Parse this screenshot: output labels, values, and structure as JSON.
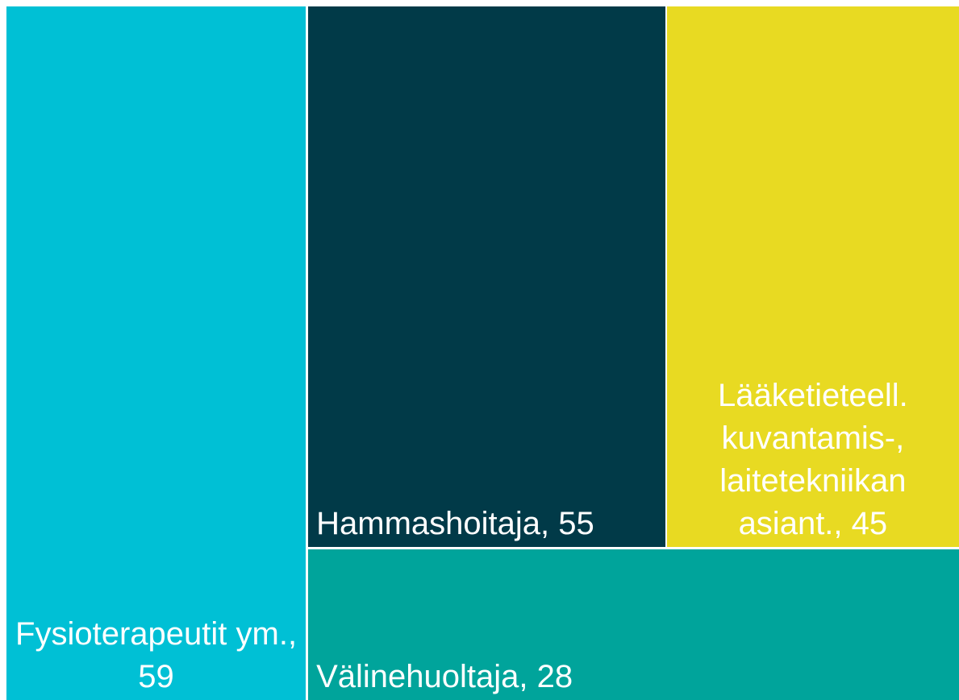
{
  "chart_data": {
    "type": "treemap",
    "values": [
      59,
      55,
      45,
      28
    ],
    "value_labels": [
      "Fysioterapeutit ym., 59",
      "Hammashoitaja, 55",
      "Lääketieteell. kuvantamis-, laitetekniikan asiant., 45",
      "Välinehuoltaja, 28"
    ],
    "colors": [
      "#00c0d5",
      "#013a48",
      "#e8da22",
      "#00a49b"
    ]
  }
}
